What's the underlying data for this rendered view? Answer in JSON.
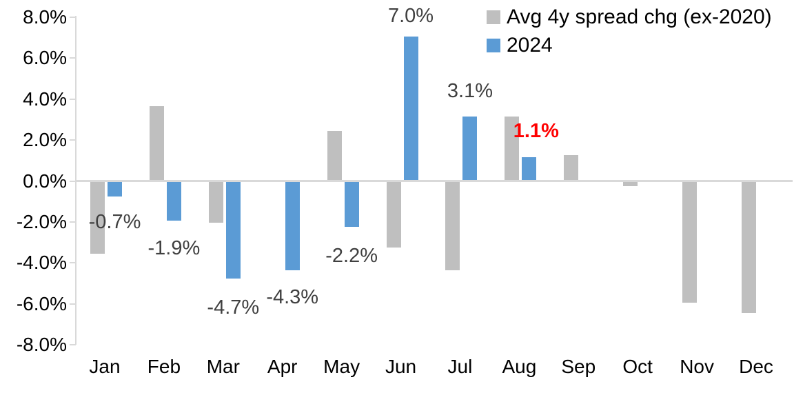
{
  "chart_data": {
    "type": "bar",
    "title": "",
    "xlabel": "",
    "ylabel": "",
    "categories": [
      "Jan",
      "Feb",
      "Mar",
      "Apr",
      "May",
      "Jun",
      "Jul",
      "Aug",
      "Sep",
      "Oct",
      "Nov",
      "Dec"
    ],
    "series": [
      {
        "name": "Avg 4y spread chg (ex-2020)",
        "color": "#BFBFBF",
        "values": [
          -3.5,
          3.6,
          -2.0,
          0.0,
          2.4,
          -3.2,
          -4.3,
          3.1,
          1.2,
          -0.2,
          -5.9,
          -6.4
        ]
      },
      {
        "name": "2024",
        "color": "#5B9BD5",
        "values": [
          -0.7,
          -1.9,
          -4.7,
          -4.3,
          -2.2,
          7.0,
          3.1,
          1.1,
          null,
          null,
          null,
          null
        ]
      }
    ],
    "y_axis": {
      "min": -8,
      "max": 8,
      "tick_format": "0.0%",
      "ticks": [
        {
          "label": "8.0%",
          "value": 8
        },
        {
          "label": "6.0%",
          "value": 6
        },
        {
          "label": "4.0%",
          "value": 4
        },
        {
          "label": "2.0%",
          "value": 2
        },
        {
          "label": "0.0%",
          "value": 0
        },
        {
          "label": "-2.0%",
          "value": -2
        },
        {
          "label": "-4.0%",
          "value": -4
        },
        {
          "label": "-6.0%",
          "value": -6
        },
        {
          "label": "-8.0%",
          "value": -8
        }
      ]
    },
    "annotations": [
      {
        "category": "Jan",
        "series": "2024",
        "text": "-0.7%",
        "color": "#404040",
        "bold": false
      },
      {
        "category": "Feb",
        "series": "2024",
        "text": "-1.9%",
        "color": "#404040",
        "bold": false
      },
      {
        "category": "Mar",
        "series": "2024",
        "text": "-4.7%",
        "color": "#404040",
        "bold": false
      },
      {
        "category": "Apr",
        "series": "2024",
        "text": "-4.3%",
        "color": "#404040",
        "bold": false
      },
      {
        "category": "May",
        "series": "2024",
        "text": "-2.2%",
        "color": "#404040",
        "bold": false
      },
      {
        "category": "Jun",
        "series": "2024",
        "text": "7.0%",
        "color": "#404040",
        "bold": false
      },
      {
        "category": "Jul",
        "series": "2024",
        "text": "3.1%",
        "color": "#404040",
        "bold": false
      },
      {
        "category": "Aug",
        "series": "2024",
        "text": "1.1%",
        "color": "#FF0000",
        "bold": true
      }
    ],
    "legend_position": "top-right",
    "grid": "none",
    "axis_color": "#D9D9D9"
  }
}
